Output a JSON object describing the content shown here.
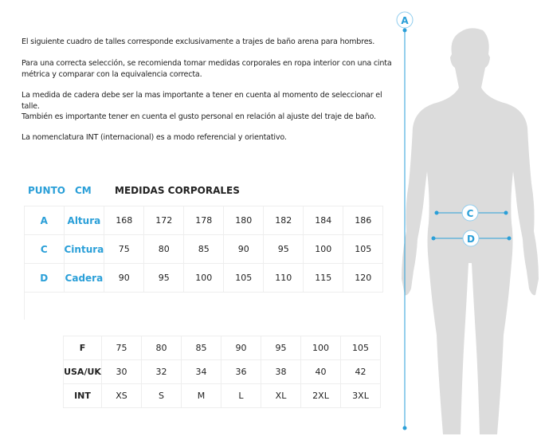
{
  "intro": [
    "El siguiente cuadro de talles corresponde exclusivamente a trajes de baño arena para hombres.",
    "Para una correcta selección, se recomienda tomar medidas corporales en ropa interior con una cinta métrica y comparar con la equivalencia correcta.",
    "La medida de cadera debe ser la mas importante a tener en cuenta al momento de seleccionar el talle.",
    "También es importante tener en cuenta el gusto personal en relación al ajuste del traje de baño.",
    "La nomenclatura INT (internacional) es a modo referencial y orientativo."
  ],
  "headers": {
    "punto": "PUNTO",
    "cm": "CM",
    "medidas": "MEDIDAS CORPORALES"
  },
  "body_table": [
    {
      "point": "A",
      "name": "Altura",
      "values": [
        "168",
        "172",
        "178",
        "180",
        "182",
        "184",
        "186"
      ]
    },
    {
      "point": "C",
      "name": "Cintura",
      "values": [
        "75",
        "80",
        "85",
        "90",
        "95",
        "100",
        "105"
      ]
    },
    {
      "point": "D",
      "name": "Cadera",
      "values": [
        "90",
        "95",
        "100",
        "105",
        "110",
        "115",
        "120"
      ]
    }
  ],
  "size_table": [
    {
      "label": "F",
      "values": [
        "75",
        "80",
        "85",
        "90",
        "95",
        "100",
        "105"
      ]
    },
    {
      "label": "USA/UK",
      "values": [
        "30",
        "32",
        "34",
        "36",
        "38",
        "40",
        "42"
      ]
    },
    {
      "label": "INT",
      "values": [
        "XS",
        "S",
        "M",
        "L",
        "XL",
        "2XL",
        "3XL"
      ]
    }
  ],
  "figure": {
    "marker_a": "A",
    "marker_c": "C",
    "marker_d": "D"
  },
  "colors": {
    "accent": "#2a9fd8",
    "silhouette": "#dcdcdc"
  }
}
